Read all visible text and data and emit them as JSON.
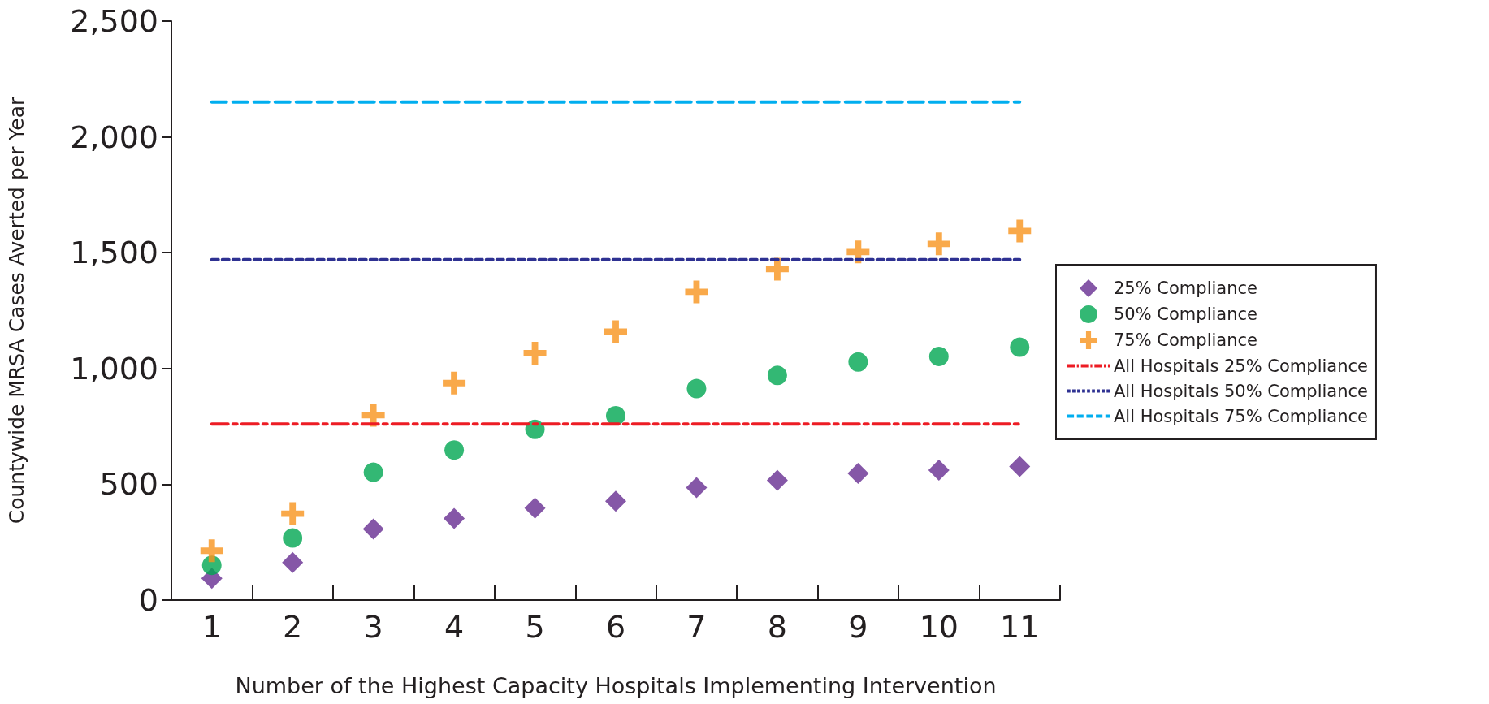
{
  "chart_data": {
    "type": "scatter",
    "xlabel": "Number of the Highest Capacity Hospitals Implementing Intervention",
    "ylabel": "Countywide MRSA Cases Averted per Year",
    "categories": [
      "1",
      "2",
      "3",
      "4",
      "5",
      "6",
      "7",
      "8",
      "9",
      "10",
      "11"
    ],
    "series": [
      {
        "name": "25% Compliance",
        "color": "#662d91",
        "marker": "diamond",
        "values": [
          94,
          162,
          307,
          352,
          397,
          427,
          486,
          517,
          547,
          561,
          577
        ]
      },
      {
        "name": "50% Compliance",
        "color": "#00a651",
        "marker": "circle",
        "values": [
          150,
          268,
          552,
          648,
          737,
          796,
          913,
          970,
          1028,
          1052,
          1092
        ]
      },
      {
        "name": "75% Compliance",
        "color": "#f7941d",
        "marker": "cross",
        "values": [
          213,
          373,
          798,
          937,
          1066,
          1159,
          1331,
          1429,
          1503,
          1538,
          1594
        ]
      }
    ],
    "ref_lines": [
      {
        "axis": "y",
        "value": 760,
        "label": "All Hospitals 25% Compliance",
        "color": "#ed1c24",
        "line_style": "dashdot"
      },
      {
        "axis": "y",
        "value": 1470,
        "label": "All Hospitals 50% Compliance",
        "color": "#2e3192",
        "line_style": "dotted"
      },
      {
        "axis": "y",
        "value": 2150,
        "label": "All Hospitals 75% Compliance",
        "color": "#00aeef",
        "line_style": "dashed"
      }
    ],
    "ylim": [
      0,
      2500
    ],
    "yticks": [
      0,
      500,
      {
        "value": 1000,
        "label": "1,000"
      },
      {
        "value": 1500,
        "label": "1,500"
      },
      {
        "value": 2000,
        "label": "2,000"
      },
      {
        "value": 2500,
        "label": "2,500"
      }
    ],
    "grid": false,
    "legend": "right"
  }
}
